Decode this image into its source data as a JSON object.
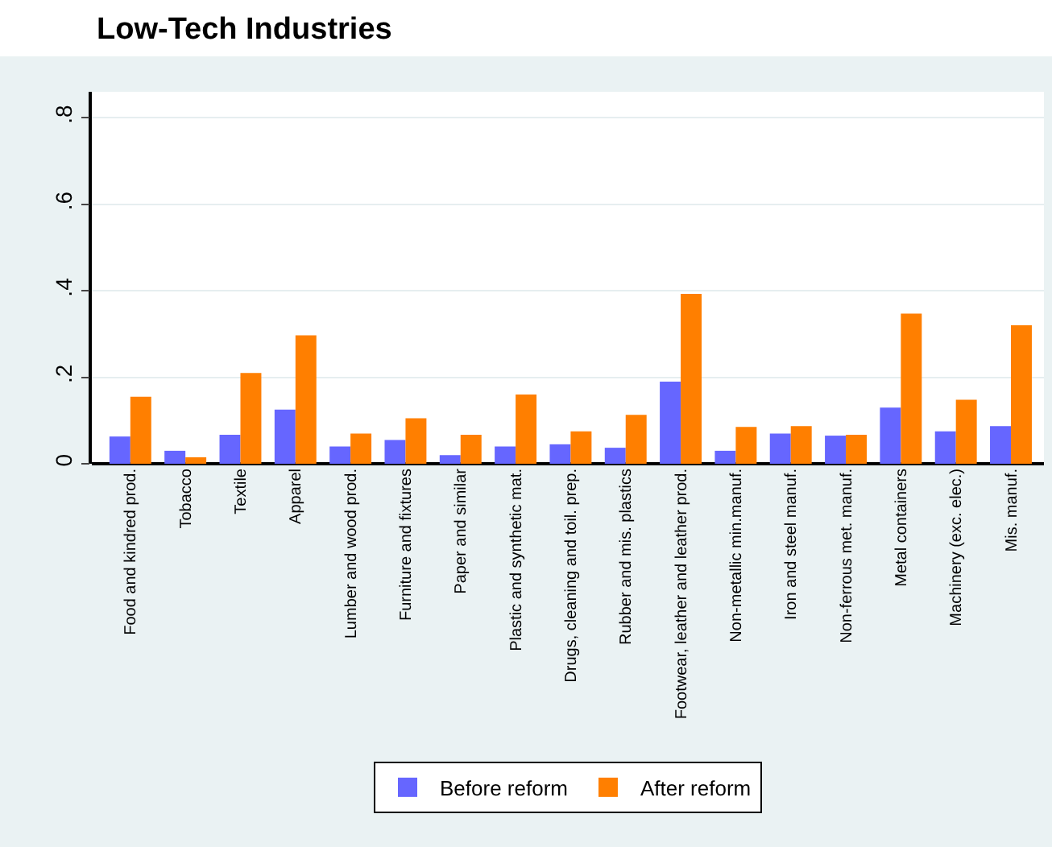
{
  "chart_data": {
    "type": "bar",
    "title": "Low-Tech Industries",
    "categories": [
      "Food and kindred prod.",
      "Tobacco",
      "Textile",
      "Apparel",
      "Lumber and wood prod.",
      "Furniture and fixtures",
      "Paper and similar",
      "Plastic and synthetic mat.",
      "Drugs, cleaning and toil. prep.",
      "Rubber and mis. plastics",
      "Footwear, leather and leather prod.",
      "Non-metallic min.manuf.",
      "Iron and steel manuf.",
      "Non-ferrous met. manuf.",
      "Metal containers",
      "Machinery (exc. elec.)",
      "Mis. manuf."
    ],
    "series": [
      {
        "name": "Before reform",
        "color": "#6666ff",
        "values": [
          0.063,
          0.03,
          0.067,
          0.125,
          0.04,
          0.055,
          0.02,
          0.04,
          0.045,
          0.037,
          0.19,
          0.03,
          0.07,
          0.065,
          0.13,
          0.075,
          0.087
        ]
      },
      {
        "name": "After reform",
        "color": "#ff7f00",
        "values": [
          0.155,
          0.015,
          0.21,
          0.297,
          0.07,
          0.105,
          0.067,
          0.16,
          0.075,
          0.113,
          0.393,
          0.085,
          0.087,
          0.067,
          0.347,
          0.148,
          0.32
        ]
      }
    ],
    "ylim": [
      0,
      0.86
    ],
    "yticks": [
      {
        "value": 0,
        "label": "0"
      },
      {
        "value": 0.2,
        "label": ".2"
      },
      {
        "value": 0.4,
        "label": ".4"
      },
      {
        "value": 0.6,
        "label": ".6"
      },
      {
        "value": 0.8,
        "label": ".8"
      }
    ],
    "grid": "y",
    "legend": "bottom"
  }
}
